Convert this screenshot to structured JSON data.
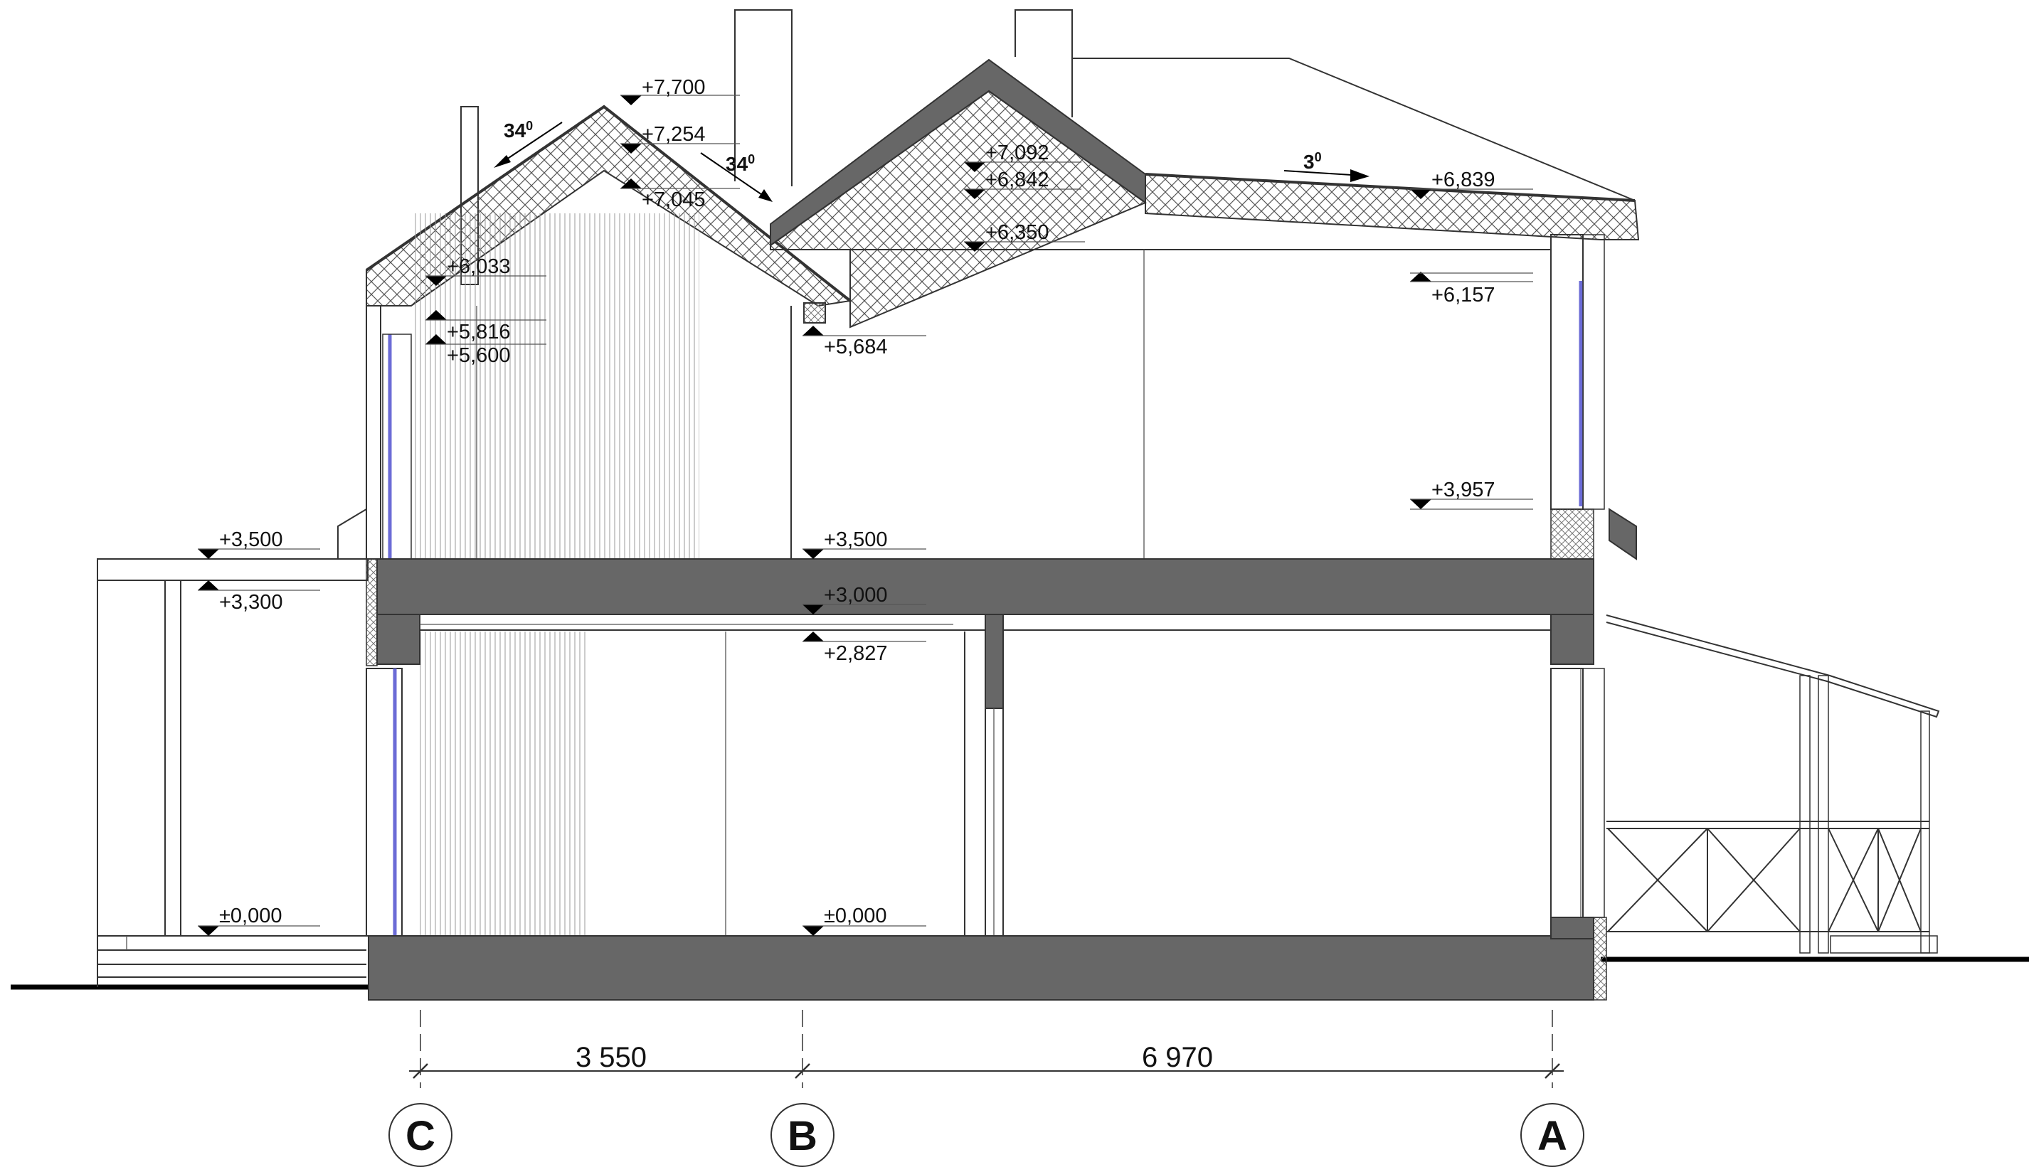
{
  "levels": {
    "l7700": "+7,700",
    "l7254": "+7,254",
    "l7045": "+7,045",
    "l7092": "+7,092",
    "l6842": "+6,842",
    "l6839": "+6,839",
    "l6350": "+6,350",
    "l6157": "+6,157",
    "l6033": "+6,033",
    "l5816": "+5,816",
    "l5600": "+5,600",
    "l5684": "+5,684",
    "l3957": "+3,957",
    "l3500_left": "+3,500",
    "l3500_center": "+3,500",
    "l3300": "+3,300",
    "l3000": "+3,000",
    "l2827": "+2,827",
    "l0000_left": "±0,000",
    "l0000_center": "±0,000"
  },
  "angles": {
    "left_slope": "34",
    "right_slope": "34",
    "low_slope": "3",
    "degree_mark": "0"
  },
  "dimensions": {
    "c_to_b": "3 550",
    "b_to_a": "6 970"
  },
  "axes": {
    "c": "C",
    "b": "B",
    "a": "A"
  },
  "colors": {
    "concrete": "#676767",
    "outline": "#333333",
    "glazing": "#6b6bd6"
  }
}
